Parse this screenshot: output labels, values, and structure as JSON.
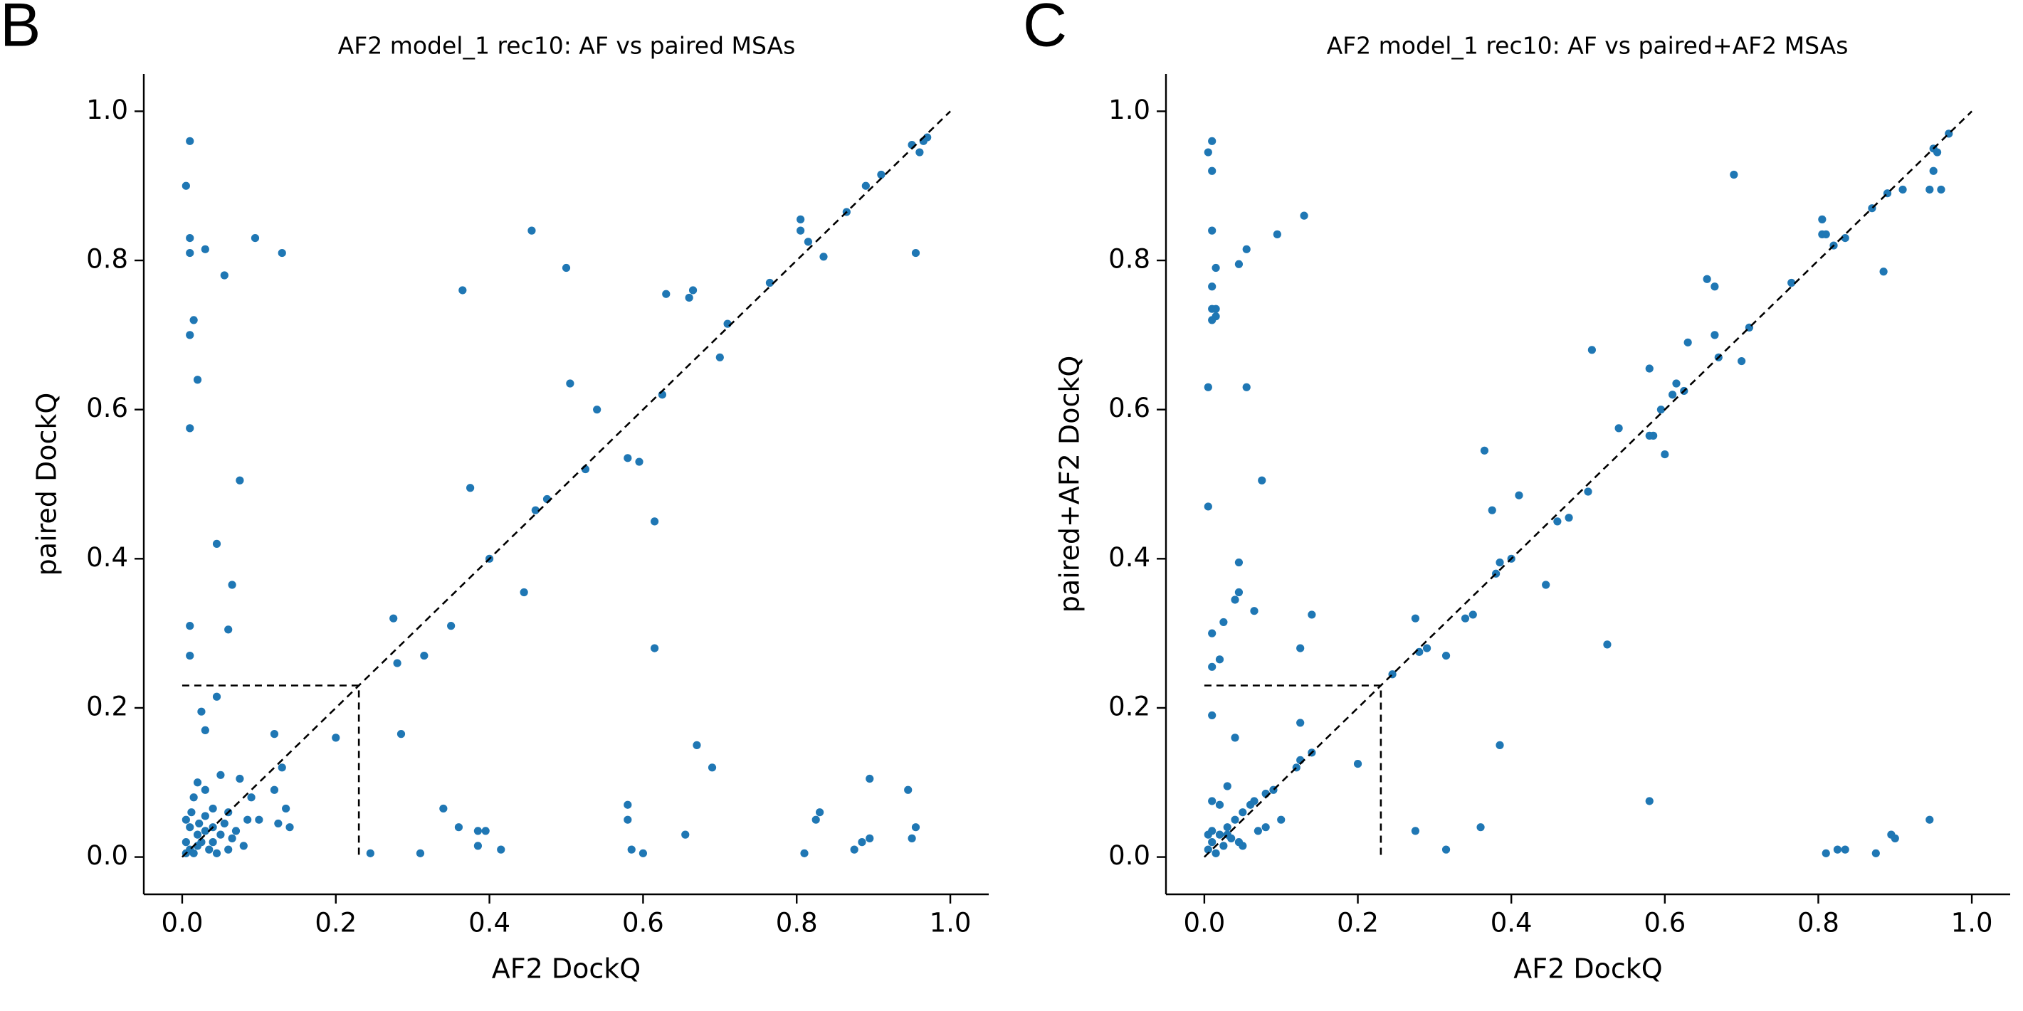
{
  "chart_data": [
    {
      "type": "scatter",
      "panel_label": "B",
      "title": "AF2 model_1 rec10: AF vs paired MSAs",
      "x_label": "AF2 DockQ",
      "y_label": "paired DockQ",
      "color": "#1f77b4",
      "xlim": [
        -0.05,
        1.05
      ],
      "ylim": [
        -0.05,
        1.05
      ],
      "xticks": [
        {
          "value": 0,
          "label": "0.0"
        },
        0.2,
        0.4,
        0.6,
        0.8,
        {
          "value": 1,
          "label": "1.0"
        }
      ],
      "yticks": [
        {
          "value": 0,
          "label": "0.0"
        },
        0.2,
        0.4,
        0.6,
        0.8,
        {
          "value": 1,
          "label": "1.0"
        }
      ],
      "lines": [
        {
          "x": [
            0,
            0.23,
            0.23
          ],
          "y": [
            0.23,
            0.23,
            0
          ]
        },
        {
          "x": [
            0,
            1
          ],
          "y": [
            0,
            1
          ]
        }
      ],
      "x": [
        0.01,
        0.005,
        0.01,
        0.01,
        0.03,
        0.055,
        0.095,
        0.13,
        0.015,
        0.01,
        0.02,
        0.01,
        0.075,
        0.045,
        0.065,
        0.01,
        0.06,
        0.01,
        0.025,
        0.045,
        0.03,
        0.12,
        0.2,
        0.13,
        0.05,
        0.075,
        0.12,
        0.03,
        0.09,
        0.135,
        0.015,
        0.02,
        0.04,
        0.06,
        0.085,
        0.1,
        0.125,
        0.14,
        0.005,
        0.01,
        0.02,
        0.03,
        0.04,
        0.05,
        0.065,
        0.08,
        0.005,
        0.01,
        0.015,
        0.02,
        0.025,
        0.035,
        0.045,
        0.06,
        0.005,
        0.012,
        0.022,
        0.03,
        0.04,
        0.055,
        0.07,
        0.245,
        0.31,
        0.275,
        0.28,
        0.285,
        0.315,
        0.34,
        0.35,
        0.36,
        0.365,
        0.375,
        0.385,
        0.385,
        0.395,
        0.4,
        0.415,
        0.445,
        0.455,
        0.46,
        0.475,
        0.5,
        0.505,
        0.525,
        0.54,
        0.58,
        0.58,
        0.58,
        0.585,
        0.595,
        0.6,
        0.615,
        0.615,
        0.625,
        0.63,
        0.66,
        0.665,
        0.655,
        0.67,
        0.69,
        0.7,
        0.71,
        0.765,
        0.805,
        0.805,
        0.815,
        0.81,
        0.825,
        0.83,
        0.835,
        0.865,
        0.875,
        0.885,
        0.895,
        0.89,
        0.895,
        0.91,
        0.945,
        0.95,
        0.955,
        0.955,
        0.95,
        0.96,
        0.965,
        0.97
      ],
      "y": [
        0.96,
        0.9,
        0.83,
        0.81,
        0.815,
        0.78,
        0.83,
        0.81,
        0.72,
        0.7,
        0.64,
        0.575,
        0.505,
        0.42,
        0.365,
        0.31,
        0.305,
        0.27,
        0.195,
        0.215,
        0.17,
        0.165,
        0.16,
        0.12,
        0.11,
        0.105,
        0.09,
        0.09,
        0.08,
        0.065,
        0.08,
        0.1,
        0.065,
        0.06,
        0.05,
        0.05,
        0.045,
        0.04,
        0.05,
        0.04,
        0.03,
        0.035,
        0.02,
        0.03,
        0.025,
        0.015,
        0.02,
        0.01,
        0.005,
        0.015,
        0.02,
        0.01,
        0.005,
        0.01,
        0.005,
        0.06,
        0.045,
        0.055,
        0.04,
        0.045,
        0.035,
        0.005,
        0.005,
        0.32,
        0.26,
        0.165,
        0.27,
        0.065,
        0.31,
        0.04,
        0.76,
        0.495,
        0.015,
        0.035,
        0.035,
        0.4,
        0.01,
        0.355,
        0.84,
        0.465,
        0.48,
        0.79,
        0.635,
        0.52,
        0.6,
        0.535,
        0.07,
        0.05,
        0.01,
        0.53,
        0.005,
        0.45,
        0.28,
        0.62,
        0.755,
        0.75,
        0.76,
        0.03,
        0.15,
        0.12,
        0.67,
        0.715,
        0.77,
        0.84,
        0.855,
        0.825,
        0.005,
        0.05,
        0.06,
        0.805,
        0.865,
        0.01,
        0.02,
        0.025,
        0.9,
        0.105,
        0.915,
        0.09,
        0.025,
        0.04,
        0.81,
        0.955,
        0.945,
        0.96,
        0.965
      ]
    },
    {
      "type": "scatter",
      "panel_label": "C",
      "title": "AF2 model_1 rec10: AF vs paired+AF2 MSAs",
      "x_label": "AF2 DockQ",
      "y_label": "paired+AF2 DockQ",
      "color": "#1f77b4",
      "xlim": [
        -0.05,
        1.05
      ],
      "ylim": [
        -0.05,
        1.05
      ],
      "xticks": [
        {
          "value": 0,
          "label": "0.0"
        },
        0.2,
        0.4,
        0.6,
        0.8,
        {
          "value": 1,
          "label": "1.0"
        }
      ],
      "yticks": [
        {
          "value": 0,
          "label": "0.0"
        },
        0.2,
        0.4,
        0.6,
        0.8,
        {
          "value": 1,
          "label": "1.0"
        }
      ],
      "lines": [
        {
          "x": [
            0,
            0.23,
            0.23
          ],
          "y": [
            0.23,
            0.23,
            0
          ]
        },
        {
          "x": [
            0,
            1
          ],
          "y": [
            0,
            1
          ]
        }
      ],
      "x": [
        0.005,
        0.01,
        0.01,
        0.01,
        0.015,
        0.045,
        0.055,
        0.095,
        0.13,
        0.01,
        0.01,
        0.015,
        0.01,
        0.015,
        0.005,
        0.055,
        0.075,
        0.005,
        0.045,
        0.045,
        0.04,
        0.065,
        0.025,
        0.01,
        0.02,
        0.01,
        0.125,
        0.14,
        0.01,
        0.04,
        0.125,
        0.125,
        0.2,
        0.14,
        0.12,
        0.03,
        0.1,
        0.09,
        0.08,
        0.065,
        0.06,
        0.05,
        0.04,
        0.03,
        0.02,
        0.01,
        0.005,
        0.015,
        0.025,
        0.035,
        0.045,
        0.05,
        0.07,
        0.08,
        0.01,
        0.02,
        0.01,
        0.005,
        0.03,
        0.245,
        0.275,
        0.28,
        0.275,
        0.29,
        0.315,
        0.315,
        0.34,
        0.35,
        0.36,
        0.365,
        0.375,
        0.38,
        0.385,
        0.385,
        0.4,
        0.41,
        0.445,
        0.46,
        0.475,
        0.5,
        0.505,
        0.525,
        0.54,
        0.58,
        0.58,
        0.58,
        0.585,
        0.595,
        0.6,
        0.61,
        0.615,
        0.625,
        0.63,
        0.655,
        0.665,
        0.665,
        0.67,
        0.69,
        0.7,
        0.71,
        0.765,
        0.805,
        0.805,
        0.81,
        0.81,
        0.82,
        0.825,
        0.835,
        0.835,
        0.87,
        0.875,
        0.885,
        0.89,
        0.895,
        0.9,
        0.91,
        0.945,
        0.945,
        0.95,
        0.955,
        0.95,
        0.96,
        0.97
      ],
      "y": [
        0.945,
        0.96,
        0.92,
        0.84,
        0.79,
        0.795,
        0.815,
        0.835,
        0.86,
        0.765,
        0.735,
        0.735,
        0.72,
        0.725,
        0.63,
        0.63,
        0.505,
        0.47,
        0.395,
        0.355,
        0.345,
        0.33,
        0.315,
        0.3,
        0.265,
        0.255,
        0.28,
        0.325,
        0.19,
        0.16,
        0.18,
        0.13,
        0.125,
        0.14,
        0.12,
        0.095,
        0.05,
        0.09,
        0.085,
        0.075,
        0.07,
        0.06,
        0.05,
        0.04,
        0.03,
        0.02,
        0.01,
        0.005,
        0.015,
        0.025,
        0.02,
        0.015,
        0.035,
        0.04,
        0.075,
        0.07,
        0.035,
        0.03,
        0.03,
        0.245,
        0.32,
        0.275,
        0.035,
        0.28,
        0.27,
        0.01,
        0.32,
        0.325,
        0.04,
        0.545,
        0.465,
        0.38,
        0.395,
        0.15,
        0.4,
        0.485,
        0.365,
        0.45,
        0.455,
        0.49,
        0.68,
        0.285,
        0.575,
        0.655,
        0.565,
        0.075,
        0.565,
        0.6,
        0.54,
        0.62,
        0.635,
        0.625,
        0.69,
        0.775,
        0.7,
        0.765,
        0.67,
        0.915,
        0.665,
        0.71,
        0.77,
        0.835,
        0.855,
        0.835,
        0.005,
        0.82,
        0.01,
        0.01,
        0.83,
        0.87,
        0.005,
        0.785,
        0.89,
        0.03,
        0.025,
        0.895,
        0.05,
        0.895,
        0.92,
        0.945,
        0.95,
        0.895,
        0.97
      ]
    }
  ]
}
